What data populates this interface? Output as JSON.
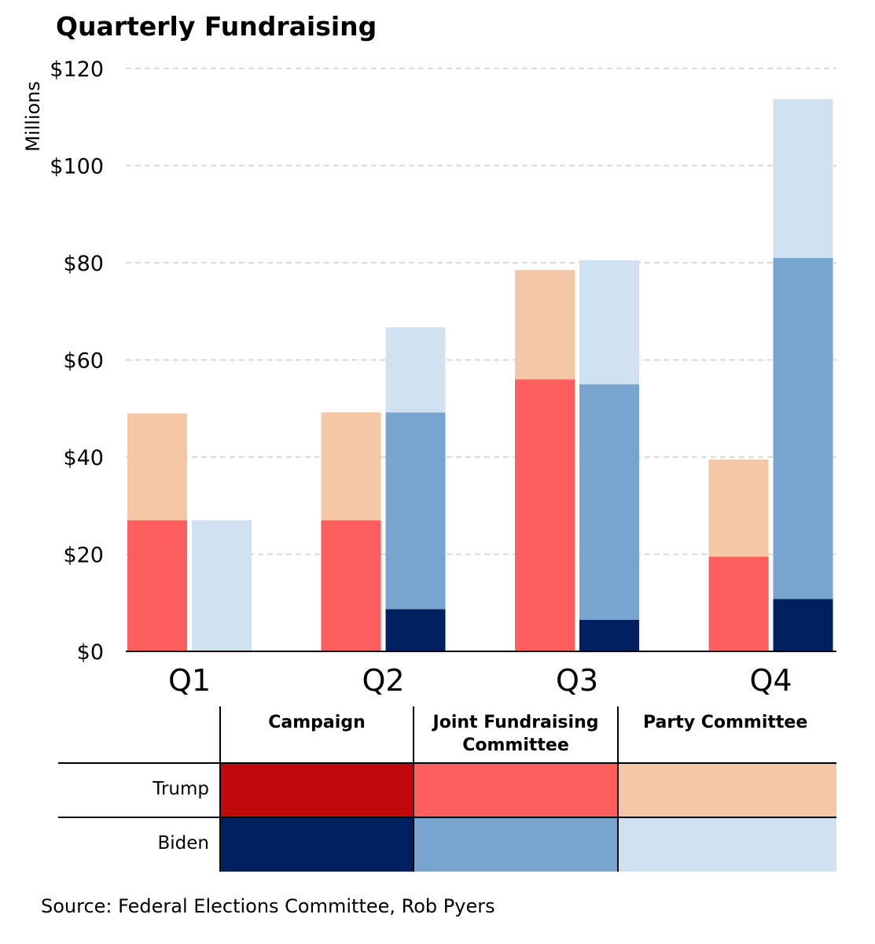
{
  "chart_data": {
    "type": "bar",
    "title": "Quarterly Fundraising",
    "ylabel": "Millions",
    "ylim": [
      0,
      120
    ],
    "yticks": [
      0,
      20,
      40,
      60,
      80,
      100,
      120
    ],
    "ytick_labels": [
      "$0",
      "$20",
      "$40",
      "$60",
      "$80",
      "$100",
      "$120"
    ],
    "grid": true,
    "categories": [
      "Q1",
      "Q2",
      "Q3",
      "Q4"
    ],
    "groups": [
      {
        "name": "Trump",
        "stack": [
          {
            "name": "Campaign",
            "color": "#C0090B",
            "values": [
              0,
              0,
              0,
              0
            ]
          },
          {
            "name": "Joint Fundraising Committee",
            "color": "#FF5E5E",
            "values": [
              27,
              27,
              56,
              19.5
            ]
          },
          {
            "name": "Party Committee",
            "color": "#F6C7A6",
            "values": [
              22,
              22.2,
              22.5,
              20
            ]
          }
        ]
      },
      {
        "name": "Biden",
        "stack": [
          {
            "name": "Campaign",
            "color": "#002060",
            "values": [
              0,
              8.7,
              6.5,
              10.8
            ]
          },
          {
            "name": "Joint Fundraising Committee",
            "color": "#77A5CF",
            "values": [
              0,
              40.5,
              48.5,
              70.2
            ]
          },
          {
            "name": "Party Committee",
            "color": "#D0E1F1",
            "values": [
              27,
              17.5,
              25.5,
              32.7
            ]
          }
        ]
      }
    ],
    "legend": {
      "columns": [
        "Campaign",
        "Joint Fundraising\nCommittee",
        "Party Committee"
      ],
      "column_lines": [
        "Campaign",
        [
          "Joint Fundraising",
          "Committee"
        ],
        "Party Committee"
      ],
      "rows": [
        "Trump",
        "Biden"
      ]
    },
    "source": "Source: Federal Elections Committee, Rob Pyers"
  }
}
